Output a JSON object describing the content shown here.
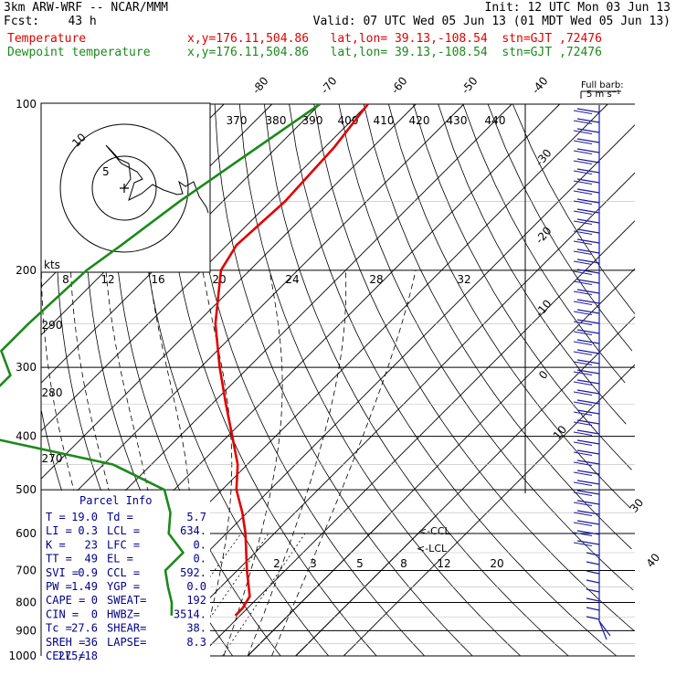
{
  "header": {
    "model": "3km ARW-WRF -- NCAR/MMM",
    "init": "Init: 12 UTC Mon 03 Jun 13",
    "fcst": "Fcst:    43 h",
    "valid": "Valid: 07 UTC Wed 05 Jun 13 (01 MDT Wed 05 Jun 13)",
    "temp_label": "Temperature",
    "temp_loc": "x,y=176.11,504.86   lat,lon= 39.13,-108.54  stn=GJT ,72476",
    "dew_label": "Dewpoint temperature",
    "dew_loc": "x,y=176.11,504.86   lat,lon= 39.13,-108.54  stn=GJT ,72476"
  },
  "colors": {
    "temperature": "#e00000",
    "dewpoint": "#1a8a1a",
    "wind_barbs": "#1a1aa0",
    "parcel_info": "#00008b"
  },
  "wind_legend": {
    "title": "Full barb:",
    "value": "5 m s⁻¹"
  },
  "hodograph": {
    "units_label": "kts",
    "ring_labels": [
      "5",
      "10"
    ]
  },
  "parcel_info": {
    "title": "Parcel Info",
    "rows": [
      [
        "T   =",
        "19.0",
        "Td  =",
        "5.7"
      ],
      [
        "LI  =",
        "0.3",
        "LCL =",
        "634."
      ],
      [
        "K   =",
        "23",
        "LFC =",
        "0."
      ],
      [
        "TT  =",
        "49",
        "EL  =",
        "0."
      ],
      [
        "SVI =",
        "0.9",
        "CCL =",
        "592."
      ],
      [
        "PW  =",
        "1.49",
        "YGP =",
        "0.0"
      ],
      [
        "CAPE =",
        "0",
        "SWEAT=",
        "192"
      ],
      [
        "CIN  =",
        "0",
        "HWBZ=",
        "3514."
      ],
      [
        "Tc  =",
        "27.6",
        "SHEAR=",
        "38."
      ],
      [
        "SREH =",
        "36",
        "LAPSE=",
        "8.3"
      ],
      [
        "CELL =",
        "275/18",
        "",
        ""
      ]
    ]
  },
  "markers": {
    "ccl": "<-CCL",
    "lcl": "<-LCL"
  },
  "chart_data": {
    "type": "skew-t",
    "title": "",
    "ylabel": "",
    "pressure_ticks": [
      100,
      200,
      300,
      400,
      500,
      600,
      700,
      800,
      900,
      1000
    ],
    "top_isotherm_labels": [
      "-80",
      "-70",
      "-60",
      "-50",
      "-40"
    ],
    "right_isotherm_labels": [
      "-30",
      "-20",
      "-10",
      "0",
      "10",
      "30",
      "40"
    ],
    "theta_labels": [
      "370",
      "380",
      "390",
      "400",
      "410",
      "420",
      "430",
      "440"
    ],
    "dry_adiabat_labels": [
      "290",
      "280",
      "270"
    ],
    "mixing_ratio_labels_upper": [
      "8",
      "12",
      "16",
      "20",
      "24",
      "28",
      "32"
    ],
    "mixing_ratio_labels_lower": [
      "2",
      "3",
      "5",
      "8",
      "12",
      "20"
    ],
    "series": [
      {
        "name": "Temperature",
        "points": [
          [
            100,
            -60
          ],
          [
            120,
            -58
          ],
          [
            150,
            -57
          ],
          [
            180,
            -58
          ],
          [
            200,
            -56
          ],
          [
            250,
            -46
          ],
          [
            300,
            -36
          ],
          [
            350,
            -27
          ],
          [
            400,
            -19
          ],
          [
            450,
            -12
          ],
          [
            500,
            -7
          ],
          [
            550,
            -1
          ],
          [
            600,
            4
          ],
          [
            700,
            12
          ],
          [
            780,
            18
          ],
          [
            820,
            19
          ],
          [
            845,
            19
          ]
        ]
      },
      {
        "name": "Dewpoint temperature",
        "points": [
          [
            100,
            -70
          ],
          [
            150,
            -79
          ],
          [
            180,
            -82
          ],
          [
            200,
            -84
          ],
          [
            250,
            -85
          ],
          [
            280,
            -85
          ],
          [
            310,
            -78
          ],
          [
            340,
            -78
          ],
          [
            370,
            -82
          ],
          [
            400,
            -71
          ],
          [
            450,
            -38
          ],
          [
            500,
            -22
          ],
          [
            550,
            -16
          ],
          [
            600,
            -12
          ],
          [
            650,
            -5
          ],
          [
            700,
            -5
          ],
          [
            750,
            -1
          ],
          [
            800,
            3
          ],
          [
            845,
            5.7
          ]
        ]
      }
    ]
  }
}
